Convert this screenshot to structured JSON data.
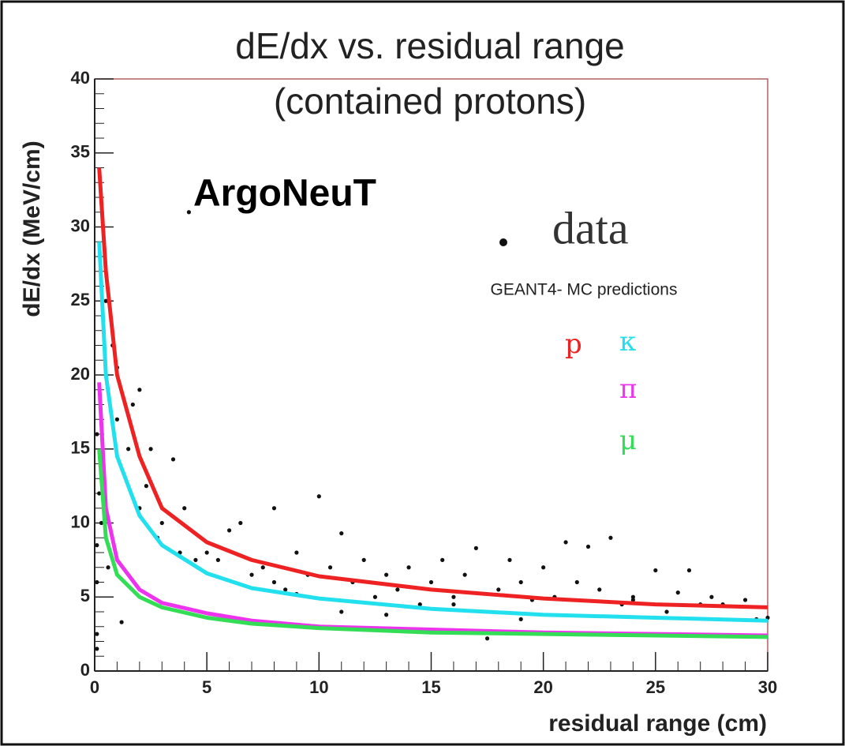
{
  "chart_data": {
    "type": "scatter+line",
    "title": "dE/dx vs. residual range",
    "subtitle": "(contained protons)",
    "x_label": "residual range (cm)",
    "y_label": "dE/dx (MeV/cm)",
    "annotations": [
      "ArgoNeuT",
      "GEANT4- MC predictions"
    ],
    "xlim": [
      0,
      30
    ],
    "ylim": [
      0,
      40
    ],
    "xticks": [
      0,
      5,
      10,
      15,
      20,
      25,
      30
    ],
    "yticks": [
      0,
      5,
      10,
      15,
      20,
      25,
      30,
      35,
      40
    ],
    "series": [
      {
        "name": "data",
        "type": "scatter",
        "color": "#111111",
        "x": [
          0.1,
          0.1,
          0.1,
          0.1,
          0.1,
          0.2,
          0.3,
          0.5,
          0.6,
          0.8,
          1,
          1,
          1.2,
          1.5,
          1.7,
          2,
          2,
          2.3,
          2.5,
          2.8,
          3,
          3.5,
          3.8,
          4,
          4.2,
          4.5,
          5,
          5.5,
          6,
          6.5,
          7,
          7.5,
          8,
          8.5,
          9,
          9.5,
          10,
          10.5,
          11,
          11.5,
          12,
          12.5,
          13,
          13.5,
          14,
          14.5,
          15,
          15.5,
          16,
          16.5,
          17,
          17.5,
          18,
          18.5,
          19,
          19.5,
          20,
          20.5,
          21,
          21.5,
          22,
          22.5,
          23,
          23.5,
          24,
          25,
          25.5,
          26,
          26.5,
          27,
          27.5,
          28,
          29,
          29.5,
          30,
          8,
          9,
          11,
          13,
          16,
          19,
          24
        ],
        "values": [
          16,
          8.5,
          6,
          2.5,
          1.5,
          12,
          10,
          25,
          7,
          22,
          20.5,
          17,
          3.3,
          15,
          18,
          19,
          11,
          12.5,
          15,
          9,
          10,
          14.3,
          8,
          11,
          31,
          7.5,
          8,
          7.5,
          9.5,
          10,
          6.5,
          7,
          11,
          5.5,
          8,
          6.5,
          11.8,
          7,
          9.3,
          6,
          7.5,
          5,
          6.5,
          5.5,
          7,
          4.5,
          6,
          7.5,
          5,
          6.5,
          8.3,
          2.2,
          5.5,
          7.5,
          6,
          4.8,
          7,
          5,
          8.7,
          6,
          8.4,
          5.5,
          9,
          4.5,
          5,
          6.8,
          4,
          5.3,
          6.8,
          4.5,
          5,
          4.5,
          4.8,
          3.5,
          3.6,
          6,
          5.2,
          4,
          3.8,
          4.5,
          3.5,
          4.8
        ]
      },
      {
        "name": "p",
        "type": "line",
        "color": "#ee2222",
        "x": [
          0.2,
          0.5,
          1,
          2,
          3,
          5,
          7,
          10,
          15,
          20,
          25,
          30
        ],
        "values": [
          34,
          27,
          20,
          14.5,
          11,
          8.7,
          7.5,
          6.4,
          5.5,
          4.9,
          4.5,
          4.3
        ]
      },
      {
        "name": "κ",
        "type": "line",
        "color": "#22e0ee",
        "x": [
          0.2,
          0.5,
          1,
          2,
          3,
          5,
          7,
          10,
          15,
          20,
          25,
          30
        ],
        "values": [
          29,
          20,
          14.5,
          10.5,
          8.5,
          6.6,
          5.6,
          4.9,
          4.2,
          3.8,
          3.6,
          3.4
        ]
      },
      {
        "name": "π",
        "type": "line",
        "color": "#ee33ee",
        "x": [
          0.2,
          0.5,
          1,
          2,
          3,
          5,
          7,
          10,
          15,
          20,
          25,
          30
        ],
        "values": [
          19.5,
          11,
          7.5,
          5.5,
          4.6,
          3.9,
          3.4,
          3.0,
          2.8,
          2.6,
          2.5,
          2.4
        ]
      },
      {
        "name": "μ",
        "type": "line",
        "color": "#33dd55",
        "x": [
          0.2,
          0.5,
          1,
          2,
          3,
          5,
          7,
          10,
          15,
          20,
          25,
          30
        ],
        "values": [
          15,
          9,
          6.5,
          5,
          4.3,
          3.6,
          3.2,
          2.9,
          2.6,
          2.5,
          2.4,
          2.3
        ]
      }
    ]
  }
}
